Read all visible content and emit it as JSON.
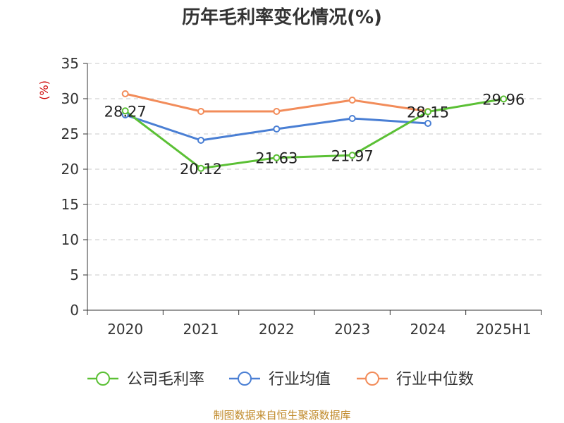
{
  "chart_data": {
    "type": "line",
    "title": "历年毛利率变化情况(%)",
    "ylabel": "(%)",
    "xlabel": "",
    "categories": [
      "2020",
      "2021",
      "2022",
      "2023",
      "2024",
      "2025H1"
    ],
    "ylim": [
      0,
      35
    ],
    "yticks": [
      0,
      5,
      10,
      15,
      20,
      25,
      30,
      35
    ],
    "grid": true,
    "legend_position": "bottom",
    "series": [
      {
        "name": "公司毛利率",
        "color": "#5bc035",
        "values": [
          28.27,
          20.12,
          21.63,
          21.97,
          28.15,
          29.96
        ],
        "labels": [
          "28.27",
          "20.12",
          "21.63",
          "21.97",
          "28.15",
          "29.96"
        ]
      },
      {
        "name": "行业均值",
        "color": "#4a7fd4",
        "values": [
          27.7,
          24.1,
          25.7,
          27.2,
          26.5,
          null
        ]
      },
      {
        "name": "行业中位数",
        "color": "#f28c5a",
        "values": [
          30.7,
          28.2,
          28.2,
          29.8,
          28.2,
          null
        ]
      }
    ]
  },
  "footer": {
    "source": "制图数据来自恒生聚源数据库"
  }
}
